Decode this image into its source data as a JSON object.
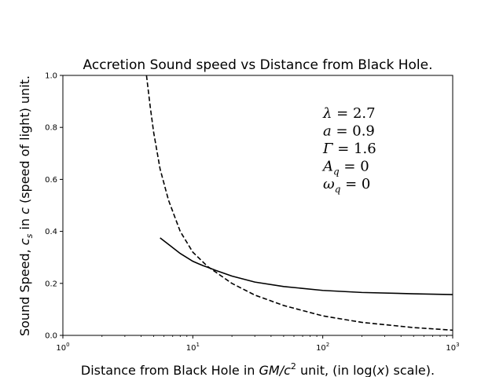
{
  "chart_data": {
    "type": "line",
    "title": "Accretion Sound speed vs Distance from Black Hole.",
    "xlabel_parts": [
      "Distance from Black Hole in ",
      "GM/c",
      "2",
      " unit, (in log(",
      "x",
      ") scale)."
    ],
    "ylabel_parts": [
      "Sound Speed, ",
      "c",
      "s",
      " in ",
      "c",
      " (speed of light) unit."
    ],
    "xscale": "log",
    "xlim": [
      1,
      1000
    ],
    "ylim": [
      0.0,
      1.0
    ],
    "grid": false,
    "x_ticks": [
      {
        "value": 1,
        "base": "10",
        "exp": "0"
      },
      {
        "value": 10,
        "base": "10",
        "exp": "1"
      },
      {
        "value": 100,
        "base": "10",
        "exp": "2"
      },
      {
        "value": 1000,
        "base": "10",
        "exp": "3"
      }
    ],
    "y_ticks": [
      {
        "value": 0.0,
        "label": "0.0"
      },
      {
        "value": 0.2,
        "label": "0.2"
      },
      {
        "value": 0.4,
        "label": "0.4"
      },
      {
        "value": 0.6,
        "label": "0.6"
      },
      {
        "value": 0.8,
        "label": "0.8"
      },
      {
        "value": 1.0,
        "label": "1.0"
      }
    ],
    "series": [
      {
        "style": "solid",
        "color": "#000000",
        "x": [
          5.6,
          6.5,
          8,
          10,
          12,
          13,
          15,
          20,
          30,
          50,
          100,
          200,
          500,
          1000
        ],
        "y": [
          0.375,
          0.35,
          0.315,
          0.285,
          0.268,
          0.262,
          0.25,
          0.228,
          0.205,
          0.188,
          0.173,
          0.165,
          0.16,
          0.157
        ]
      },
      {
        "style": "dashed",
        "color": "#000000",
        "x": [
          4.4,
          4.7,
          5,
          5.6,
          6.5,
          8,
          10,
          13,
          20,
          30,
          50,
          100,
          200,
          500,
          1000
        ],
        "y": [
          1.0,
          0.88,
          0.78,
          0.64,
          0.52,
          0.4,
          0.32,
          0.265,
          0.2,
          0.155,
          0.115,
          0.075,
          0.05,
          0.03,
          0.02
        ]
      }
    ],
    "annotation": {
      "position": "upper-right",
      "lines": [
        {
          "symbol": "λ",
          "sub": "",
          "value": " = 2.7"
        },
        {
          "symbol": "a",
          "sub": "",
          "value": " = 0.9"
        },
        {
          "symbol": "Γ",
          "sub": "",
          "value": " = 1.6"
        },
        {
          "symbol": "A",
          "sub": "q",
          "value": " = 0"
        },
        {
          "symbol": "ω",
          "sub": "q",
          "value": " = 0"
        }
      ]
    }
  }
}
